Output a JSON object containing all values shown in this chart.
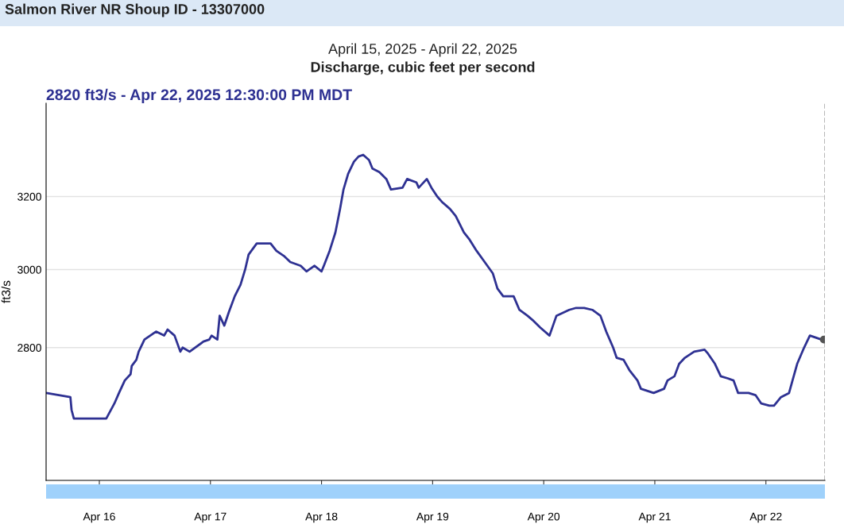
{
  "chart_data": {
    "type": "line",
    "title": "Salmon River NR Shoup ID - 13307000",
    "subtitle": "April 15, 2025 - April 22, 2025",
    "ylabel": "ft3/s",
    "annotations": [
      "Discharge, cubic feet per second",
      "2820 ft3/s - Apr 22, 2025 12:30:00 PM MDT"
    ],
    "x": [
      "2025-04-15T12:30",
      "2025-04-15T17:45",
      "2025-04-15T18:00",
      "2025-04-15T18:30",
      "2025-04-16T01:30",
      "2025-04-16T03:15",
      "2025-04-16T04:15",
      "2025-04-16T05:30",
      "2025-04-16T06:45",
      "2025-04-16T07:00",
      "2025-04-16T08:00",
      "2025-04-16T08:30",
      "2025-04-16T09:45",
      "2025-04-16T11:00",
      "2025-04-16T12:15",
      "2025-04-16T14:00",
      "2025-04-16T14:45",
      "2025-04-16T16:15",
      "2025-04-16T17:30",
      "2025-04-16T18:00",
      "2025-04-16T19:30",
      "2025-04-16T22:30",
      "2025-04-16T23:45",
      "2025-04-17T00:15",
      "2025-04-17T01:30",
      "2025-04-17T02:00",
      "2025-04-17T03:00",
      "2025-04-17T04:00",
      "2025-04-17T05:15",
      "2025-04-17T06:30",
      "2025-04-17T07:30",
      "2025-04-17T08:15",
      "2025-04-17T10:00",
      "2025-04-17T13:00",
      "2025-04-17T14:15",
      "2025-04-17T16:00",
      "2025-04-17T17:15",
      "2025-04-17T19:30",
      "2025-04-17T20:45",
      "2025-04-17T22:30",
      "2025-04-18T00:00",
      "2025-04-18T00:30",
      "2025-04-18T01:45",
      "2025-04-18T03:00",
      "2025-04-18T04:00",
      "2025-04-18T04:45",
      "2025-04-18T05:45",
      "2025-04-18T07:00",
      "2025-04-18T08:00",
      "2025-04-18T09:00",
      "2025-04-18T10:15",
      "2025-04-18T11:00",
      "2025-04-18T12:30",
      "2025-04-18T14:00",
      "2025-04-18T15:00",
      "2025-04-18T17:30",
      "2025-04-18T18:30",
      "2025-04-18T20:30",
      "2025-04-18T21:00",
      "2025-04-18T22:45",
      "2025-04-18T23:45",
      "2025-04-19T01:00",
      "2025-04-19T02:00",
      "2025-04-19T03:45",
      "2025-04-19T05:00",
      "2025-04-19T06:45",
      "2025-04-19T08:00",
      "2025-04-19T09:30",
      "2025-04-19T11:15",
      "2025-04-19T13:00",
      "2025-04-19T14:00",
      "2025-04-19T15:15",
      "2025-04-19T17:30",
      "2025-04-19T18:45",
      "2025-04-19T20:30",
      "2025-04-19T21:30",
      "2025-04-19T23:15",
      "2025-04-20T01:15",
      "2025-04-20T02:45",
      "2025-04-20T05:30",
      "2025-04-20T07:00",
      "2025-04-20T08:45",
      "2025-04-20T10:30",
      "2025-04-20T12:15",
      "2025-04-20T13:30",
      "2025-04-20T15:00",
      "2025-04-20T15:45",
      "2025-04-20T17:15",
      "2025-04-20T18:30",
      "2025-04-20T20:15",
      "2025-04-20T21:00",
      "2025-04-20T23:45",
      "2025-04-21T02:00",
      "2025-04-21T02:45",
      "2025-04-21T04:15",
      "2025-04-21T05:15",
      "2025-04-21T06:30",
      "2025-04-21T08:30",
      "2025-04-21T10:45",
      "2025-04-21T11:30",
      "2025-04-21T13:00",
      "2025-04-21T14:15",
      "2025-04-21T15:45",
      "2025-04-21T17:00",
      "2025-04-21T18:00",
      "2025-04-21T20:15",
      "2025-04-21T21:45",
      "2025-04-21T23:00",
      "2025-04-22T00:45",
      "2025-04-22T01:45",
      "2025-04-22T03:15",
      "2025-04-22T05:00",
      "2025-04-22T05:45",
      "2025-04-22T06:45",
      "2025-04-22T08:15",
      "2025-04-22T09:30",
      "2025-04-22T12:00",
      "2025-04-22T12:30"
    ],
    "series": [
      {
        "color": "#2e3192",
        "values": [
          2690,
          2680,
          2650,
          2630,
          2630,
          2665,
          2690,
          2720,
          2735,
          2755,
          2770,
          2790,
          2820,
          2830,
          2840,
          2830,
          2845,
          2830,
          2790,
          2800,
          2790,
          2815,
          2820,
          2830,
          2820,
          2880,
          2855,
          2890,
          2930,
          2960,
          3000,
          3040,
          3070,
          3070,
          3050,
          3035,
          3020,
          3010,
          2995,
          3010,
          2995,
          3010,
          3050,
          3100,
          3165,
          3220,
          3265,
          3300,
          3315,
          3320,
          3305,
          3280,
          3270,
          3250,
          3220,
          3225,
          3250,
          3240,
          3225,
          3250,
          3225,
          3200,
          3185,
          3165,
          3145,
          3100,
          3080,
          3050,
          3020,
          2990,
          2950,
          2930,
          2930,
          2895,
          2880,
          2870,
          2850,
          2830,
          2880,
          2895,
          2900,
          2900,
          2895,
          2880,
          2840,
          2800,
          2775,
          2770,
          2745,
          2720,
          2700,
          2690,
          2700,
          2720,
          2730,
          2760,
          2775,
          2790,
          2795,
          2785,
          2760,
          2730,
          2725,
          2720,
          2690,
          2690,
          2685,
          2665,
          2660,
          2660,
          2680,
          2690,
          2720,
          2760,
          2800,
          2830,
          2820,
          2820
        ]
      }
    ],
    "xlim": [
      "2025-04-15T12:30",
      "2025-04-22T12:45"
    ],
    "xticks": [
      {
        "value": "2025-04-16",
        "label": "Apr 16"
      },
      {
        "value": "2025-04-17",
        "label": "Apr 17"
      },
      {
        "value": "2025-04-18",
        "label": "Apr 18"
      },
      {
        "value": "2025-04-19",
        "label": "Apr 19"
      },
      {
        "value": "2025-04-20",
        "label": "Apr 20"
      },
      {
        "value": "2025-04-21",
        "label": "Apr 21"
      },
      {
        "value": "2025-04-22",
        "label": "Apr 22"
      }
    ],
    "ylim": [
      2490,
      3475
    ],
    "yticks": [
      2800,
      3000,
      3200
    ],
    "log": "y",
    "grid": "y",
    "ref_lines": [
      {
        "axis": "x",
        "value": "2025-04-22T12:45",
        "label": null,
        "color": "#aaaaaa",
        "line_style": "dashed"
      }
    ]
  }
}
